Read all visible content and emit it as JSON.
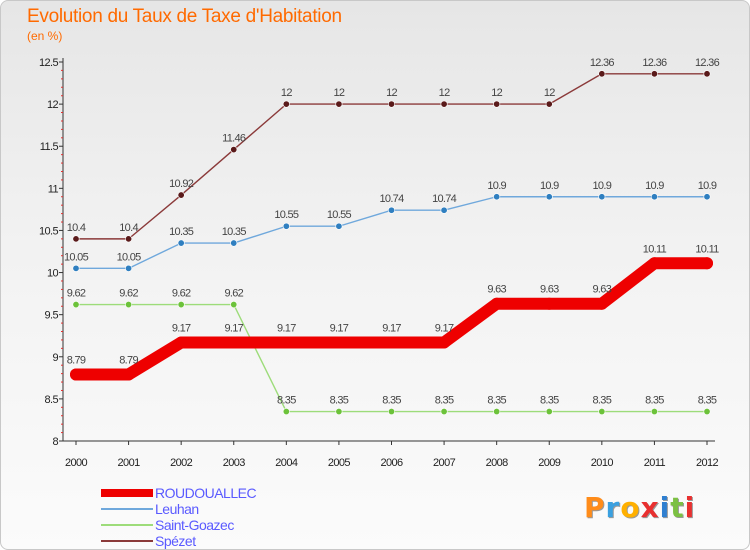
{
  "title": "Evolution du Taux de Taxe d'Habitation",
  "subtitle": "(en %)",
  "logo": {
    "text": "Proxiti",
    "letter_colors": [
      "#ff8c1a",
      "#3aa0e0",
      "#ffb000",
      "#e83030",
      "#2f7fd0",
      "#7cc043",
      "#e83030"
    ]
  },
  "chart_data": {
    "type": "line",
    "title": "Evolution du Taux de Taxe d'Habitation",
    "subtitle": "(en %)",
    "xlabel": "",
    "ylabel": "",
    "x": [
      "2000",
      "2001",
      "2002",
      "2003",
      "2004",
      "2005",
      "2006",
      "2007",
      "2008",
      "2009",
      "2010",
      "2011",
      "2012"
    ],
    "ylim": [
      8,
      12.5
    ],
    "yticks": [
      "8",
      "8.5",
      "9",
      "9.5",
      "10",
      "10.5",
      "11",
      "11.5",
      "12",
      "12.5"
    ],
    "grid": false,
    "legend_position": "bottom-left",
    "series": [
      {
        "name": "ROUDOUALLEC",
        "color": "#ee0000",
        "values": [
          8.79,
          8.79,
          9.17,
          9.17,
          9.17,
          9.17,
          9.17,
          9.17,
          9.63,
          9.63,
          9.63,
          10.11,
          10.11
        ],
        "labels": [
          "8.79",
          "8.79",
          "9.17",
          "9.17",
          "9.17",
          "9.17",
          "9.17",
          "9.17",
          "9.63",
          "9.63",
          "9.63",
          "10.11",
          "10.11"
        ]
      },
      {
        "name": "Leuhan",
        "color": "#6fa8dc",
        "marker_color": "#2f7fc0",
        "values": [
          10.05,
          10.05,
          10.35,
          10.35,
          10.55,
          10.55,
          10.74,
          10.74,
          10.9,
          10.9,
          10.9,
          10.9,
          10.9
        ],
        "labels": [
          "10.05",
          "10.05",
          "10.35",
          "10.35",
          "10.55",
          "10.55",
          "10.74",
          "10.74",
          "10.9",
          "10.9",
          "10.9",
          "10.9",
          "10.9"
        ]
      },
      {
        "name": "Saint-Goazec",
        "color": "#9ddc7a",
        "marker_color": "#6cc23a",
        "values": [
          9.62,
          9.62,
          9.62,
          9.62,
          8.35,
          8.35,
          8.35,
          8.35,
          8.35,
          8.35,
          8.35,
          8.35,
          8.35
        ],
        "labels": [
          "9.62",
          "9.62",
          "9.62",
          "9.62",
          "8.35",
          "8.35",
          "8.35",
          "8.35",
          "8.35",
          "8.35",
          "8.35",
          "8.35",
          "8.35"
        ]
      },
      {
        "name": "Spézet",
        "color": "#8b3a3a",
        "marker_color": "#5a1a1a",
        "values": [
          10.4,
          10.4,
          10.92,
          11.46,
          12,
          12,
          12,
          12,
          12,
          12,
          12.36,
          12.36,
          12.36
        ],
        "labels": [
          "10.4",
          "10.4",
          "10.92",
          "11.46",
          "12",
          "12",
          "12",
          "12",
          "12",
          "12",
          "12.36",
          "12.36",
          "12.36"
        ]
      }
    ]
  }
}
